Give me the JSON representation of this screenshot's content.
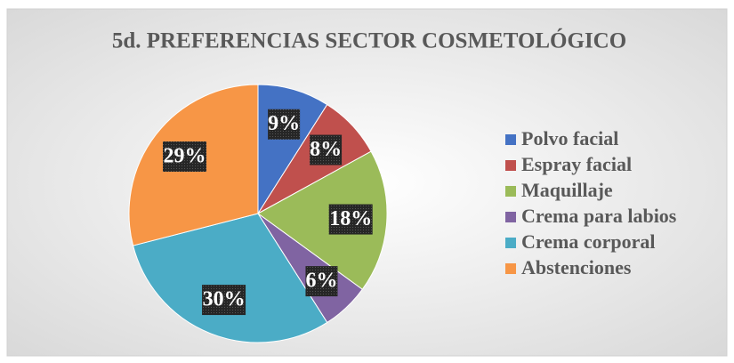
{
  "chart_data": {
    "type": "pie",
    "title": "5d. PREFERENCIAS SECTOR COSMETOLÓGICO",
    "categories": [
      "Polvo facial",
      "Espray facial",
      "Maquillaje",
      "Crema para labios",
      "Crema corporal",
      "Abstenciones"
    ],
    "values": [
      9,
      8,
      18,
      6,
      30,
      29
    ],
    "value_labels": [
      "9%",
      "8%",
      "18%",
      "6%",
      "30%",
      "29%"
    ],
    "colors": [
      "#4472c4",
      "#c0504d",
      "#9bbb59",
      "#8064a2",
      "#4bacc6",
      "#f79646"
    ],
    "legend": "right"
  }
}
